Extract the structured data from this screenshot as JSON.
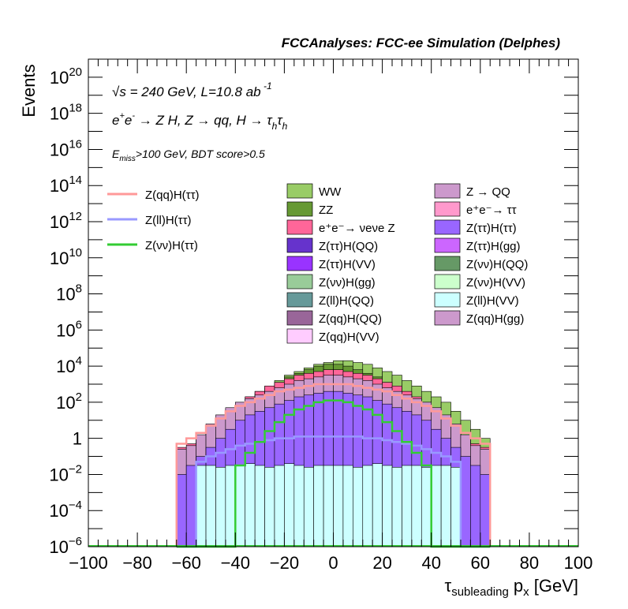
{
  "chart_data": {
    "type": "bar",
    "subtype": "stacked-histogram",
    "title": "FCCAnalyses: FCC-ee Simulation (Delphes)",
    "xlabel": {
      "main": "τ",
      "sub": "subleading",
      "rest": " p",
      "sub2": "x",
      "unit": " [GeV]"
    },
    "ylabel": "Events",
    "xlim": [
      -100,
      100
    ],
    "ylim": [
      1e-06,
      1e+21
    ],
    "yscale": "log",
    "grid": false,
    "annotations": {
      "energy_pre": "√",
      "energy_s": "s",
      "energy_text": " = 240 GeV, L=10.8 ab",
      "energy_exp": " -1",
      "process_ee": "e",
      "process_plus": "+",
      "process_e2": "e",
      "process_minus": "-",
      "process_rest": " → Z H, Z  → qq, H  → τ",
      "process_h1": "h",
      "process_tau2": "τ",
      "process_h2": "h",
      "cut_E": "E",
      "cut_sub": "miss",
      "cut_rest": ">100 GeV, BDT score>0.5"
    },
    "xticks": [
      "−100",
      "−80",
      "−60",
      "−40",
      "−20",
      "0",
      "20",
      "40",
      "60",
      "80",
      "100"
    ],
    "xtick_values": [
      -100,
      -80,
      -60,
      -40,
      -20,
      0,
      20,
      40,
      60,
      80,
      100
    ],
    "yticks": [
      {
        "value": 1e-06,
        "base": "10",
        "exp": "−6"
      },
      {
        "value": 0.0001,
        "base": "10",
        "exp": "−4"
      },
      {
        "value": 0.01,
        "base": "10",
        "exp": "−2"
      },
      {
        "value": 1,
        "base": "1",
        "exp": ""
      },
      {
        "value": 100.0,
        "base": "10",
        "exp": "2"
      },
      {
        "value": 10000.0,
        "base": "10",
        "exp": "4"
      },
      {
        "value": 1000000.0,
        "base": "10",
        "exp": "6"
      },
      {
        "value": 100000000.0,
        "base": "10",
        "exp": "8"
      },
      {
        "value": 10000000000.0,
        "base": "10",
        "exp": "10"
      },
      {
        "value": 1000000000000.0,
        "base": "10",
        "exp": "12"
      },
      {
        "value": 100000000000000.0,
        "base": "10",
        "exp": "14"
      },
      {
        "value": 1e+16,
        "base": "10",
        "exp": "16"
      },
      {
        "value": 1e+18,
        "base": "10",
        "exp": "18"
      },
      {
        "value": 1e+20,
        "base": "10",
        "exp": "20"
      }
    ],
    "bin_width": 4,
    "bin_start": -64,
    "bins": 32,
    "stack_envelopes_log10": [
      {
        "name": "WW",
        "color": "#99cc66",
        "values": [
          -0.6,
          -0.5,
          0.0,
          0.5,
          1.0,
          1.5,
          2.0,
          2.3,
          2.6,
          2.9,
          3.2,
          3.5,
          3.7,
          3.9,
          4.1,
          4.2,
          4.3,
          4.3,
          4.2,
          4.1,
          3.9,
          3.7,
          3.5,
          3.2,
          2.9,
          2.6,
          2.3,
          2.0,
          1.5,
          1.0,
          0.5,
          0.0
        ]
      },
      {
        "name": "ZZ",
        "color": "#669933",
        "values": [
          -0.6,
          -0.6,
          -0.2,
          0.3,
          0.9,
          1.4,
          1.9,
          2.2,
          2.5,
          2.8,
          3.1,
          3.4,
          3.6,
          3.8,
          4.0,
          4.1,
          4.1,
          4.0,
          3.8,
          3.6,
          3.4,
          3.1,
          2.8,
          2.5,
          2.2,
          1.9,
          1.4,
          0.9,
          0.3,
          -0.2,
          -0.6,
          -0.6
        ]
      },
      {
        "name": "e⁺e⁻ → νeνe Z",
        "color": "#ff6699",
        "values": [
          -0.5,
          -0.3,
          0.1,
          0.6,
          1.1,
          1.6,
          2.0,
          2.3,
          2.6,
          2.9,
          3.1,
          3.3,
          3.5,
          3.6,
          3.7,
          3.8,
          3.8,
          3.7,
          3.6,
          3.5,
          3.3,
          3.1,
          2.9,
          2.6,
          2.3,
          2.0,
          1.6,
          1.1,
          0.6,
          0.1,
          -0.3,
          -0.5
        ]
      },
      {
        "name": "Z → QQ",
        "color": "#cc99cc",
        "values": [
          -0.6,
          -0.4,
          0.2,
          0.8,
          1.3,
          1.7,
          2.0,
          2.2,
          2.4,
          2.6,
          2.8,
          3.0,
          3.2,
          3.3,
          3.4,
          3.5,
          3.5,
          3.4,
          3.3,
          3.2,
          3.0,
          2.8,
          2.6,
          2.4,
          2.2,
          2.0,
          1.7,
          1.3,
          0.8,
          0.2,
          -0.4,
          -0.6
        ]
      },
      {
        "name": "Z(ττ)H(ττ)",
        "color": "#9966ff",
        "values": [
          -2.0,
          -1.5,
          -1.0,
          -0.5,
          0.0,
          0.5,
          1.0,
          1.3,
          1.5,
          1.7,
          1.9,
          2.1,
          2.3,
          2.4,
          2.5,
          2.6,
          2.6,
          2.5,
          2.4,
          2.3,
          2.1,
          1.9,
          1.7,
          1.5,
          1.3,
          1.0,
          0.5,
          0.0,
          -0.5,
          -1.0,
          -1.5,
          -2.0
        ]
      },
      {
        "name": "Z(ll)H(VV)",
        "color": "#ccffff",
        "values": [
          -6,
          -6,
          -1.5,
          -1.5,
          -1.6,
          -1.5,
          -1.5,
          -1.4,
          -1.5,
          -1.6,
          -1.5,
          -1.4,
          -1.5,
          -1.6,
          -1.5,
          -1.5,
          -1.5,
          -1.5,
          -1.6,
          -1.5,
          -1.4,
          -1.5,
          -1.6,
          -1.5,
          -1.5,
          -1.6,
          -1.5,
          -1.5,
          -1.6,
          -6,
          -6,
          -6
        ]
      }
    ],
    "lines": [
      {
        "name": "Z(qq)H(ττ)",
        "color": "#ff9999",
        "values": [
          -0.3,
          0.0,
          0.3,
          0.7,
          1.1,
          1.5,
          1.8,
          2.0,
          2.2,
          2.4,
          2.6,
          2.7,
          2.8,
          2.9,
          3.0,
          3.0,
          3.0,
          3.0,
          2.9,
          2.8,
          2.7,
          2.6,
          2.4,
          2.2,
          2.0,
          1.8,
          1.5,
          1.1,
          0.7,
          0.3,
          0.0,
          -0.3
        ]
      },
      {
        "name": "Z(ll)H(ττ)",
        "color": "#9999ff",
        "values": [
          -6,
          -6,
          -1.3,
          -1.0,
          -0.8,
          -0.6,
          -0.4,
          -0.3,
          -0.2,
          -0.1,
          0.0,
          0.0,
          0.1,
          0.1,
          0.1,
          0.1,
          0.1,
          0.1,
          0.1,
          0.0,
          0.0,
          -0.1,
          -0.2,
          -0.3,
          -0.4,
          -0.6,
          -0.8,
          -1.0,
          -1.3,
          -6,
          -6,
          -6
        ]
      },
      {
        "name": "Z(νν)H(ττ)",
        "color": "#33cc33",
        "values": [
          -6,
          -6,
          -6,
          -6,
          -6,
          -6,
          -1.5,
          -0.8,
          -0.2,
          0.4,
          0.9,
          1.3,
          1.6,
          1.8,
          2.0,
          2.1,
          2.1,
          2.0,
          1.8,
          1.6,
          1.3,
          0.9,
          0.4,
          -0.2,
          -0.8,
          -1.5,
          -6,
          -6,
          -6,
          -6,
          -6,
          -6
        ]
      }
    ],
    "legend_lines": [
      {
        "label": "Z(qq)H(ττ)",
        "color": "#ff9999"
      },
      {
        "label": "Z(ll)H(ττ)",
        "color": "#9999ff"
      },
      {
        "label": "Z(νν)H(ττ)",
        "color": "#33cc33"
      }
    ],
    "legend_boxes": [
      {
        "label": "WW",
        "color": "#99cc66"
      },
      {
        "label": "Z → QQ",
        "color": "#cc99cc"
      },
      {
        "label": "ZZ",
        "color": "#669933"
      },
      {
        "label": "e⁺e⁻→ ττ",
        "color": "#ff99cc"
      },
      {
        "label": "e⁺e⁻→ νeνe Z",
        "color": "#ff6699"
      },
      {
        "label": "Z(ττ)H(ττ)",
        "color": "#9966ff"
      },
      {
        "label": "Z(ττ)H(QQ)",
        "color": "#6633cc"
      },
      {
        "label": "Z(ττ)H(gg)",
        "color": "#cc66ff"
      },
      {
        "label": "Z(ττ)H(VV)",
        "color": "#9933ff"
      },
      {
        "label": "Z(νν)H(QQ)",
        "color": "#669966"
      },
      {
        "label": "Z(νν)H(gg)",
        "color": "#99cc99"
      },
      {
        "label": "Z(νν)H(VV)",
        "color": "#ccffcc"
      },
      {
        "label": "Z(ll)H(QQ)",
        "color": "#669999"
      },
      {
        "label": "Z(ll)H(VV)",
        "color": "#ccffff"
      },
      {
        "label": "Z(qq)H(QQ)",
        "color": "#996699"
      },
      {
        "label": "Z(qq)H(gg)",
        "color": "#cc99cc"
      },
      {
        "label": "Z(qq)H(VV)",
        "color": "#ffccff"
      }
    ]
  }
}
